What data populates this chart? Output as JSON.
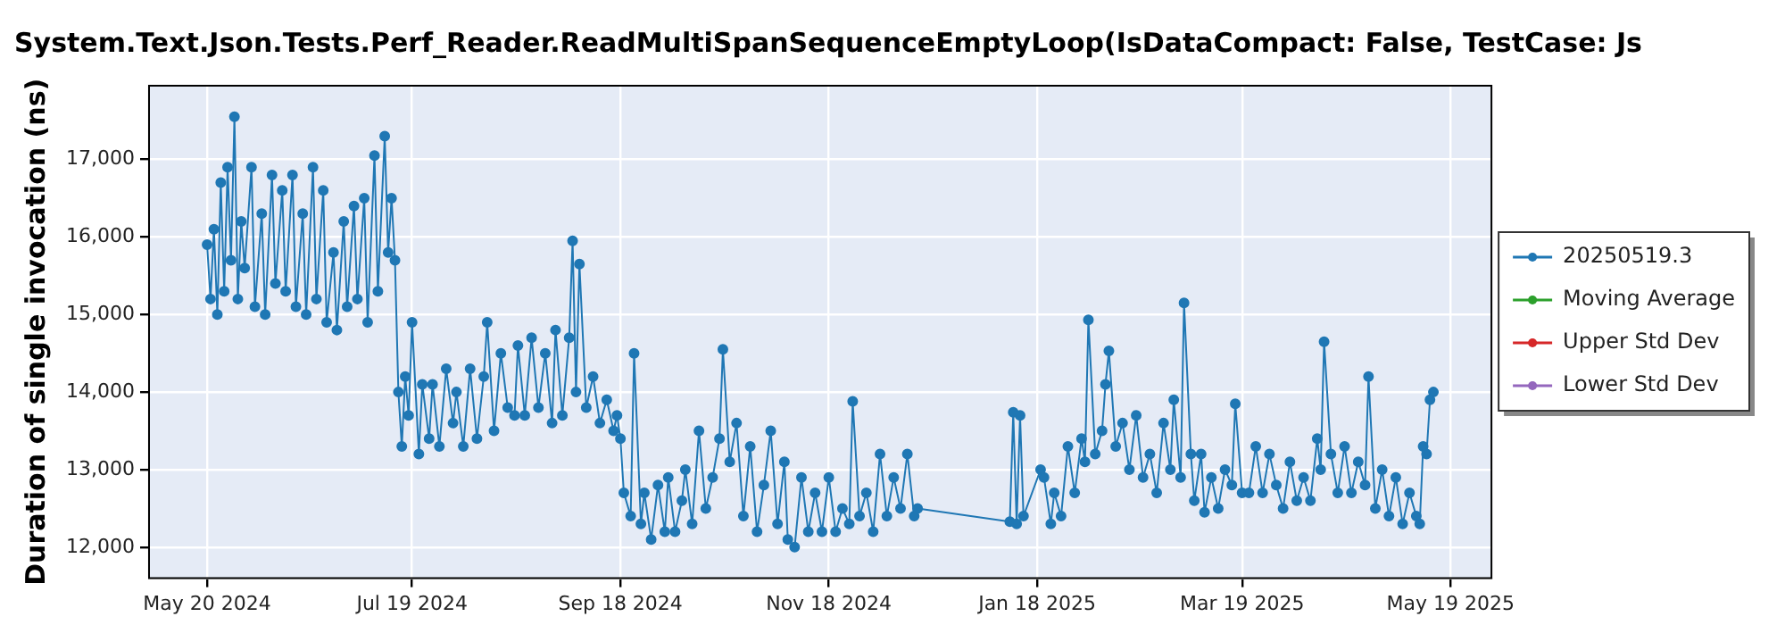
{
  "chart_data": {
    "type": "line",
    "title": "System.Text.Json.Tests.Perf_Reader.ReadMultiSpanSequenceEmptyLoop(IsDataCompact: False, TestCase: Js",
    "ylabel": "Duration of single invocation (ns)",
    "xlim": [
      "2024-05-03",
      "2025-05-31"
    ],
    "xticks": [
      {
        "value": "2024-05-20",
        "label": "May 20 2024"
      },
      {
        "value": "2024-07-19",
        "label": "Jul 19 2024"
      },
      {
        "value": "2024-09-18",
        "label": "Sep 18 2024"
      },
      {
        "value": "2024-11-18",
        "label": "Nov 18 2024"
      },
      {
        "value": "2025-01-18",
        "label": "Jan 18 2025"
      },
      {
        "value": "2025-03-19",
        "label": "Mar 19 2025"
      },
      {
        "value": "2025-05-19",
        "label": "May 19 2025"
      }
    ],
    "ylim": [
      11600,
      17950
    ],
    "yticks": [
      {
        "value": 12000,
        "label": "12,000"
      },
      {
        "value": 13000,
        "label": "13,000"
      },
      {
        "value": 14000,
        "label": "14,000"
      },
      {
        "value": 15000,
        "label": "15,000"
      },
      {
        "value": 16000,
        "label": "16,000"
      },
      {
        "value": 17000,
        "label": "17,000"
      }
    ],
    "grid": true,
    "legend": "right",
    "marker": "circle",
    "series": [
      {
        "name": "20250519.3",
        "color": "#1f77b4",
        "x": [
          "2024-05-20",
          "2024-05-21",
          "2024-05-22",
          "2024-05-23",
          "2024-05-24",
          "2024-05-25",
          "2024-05-26",
          "2024-05-27",
          "2024-05-28",
          "2024-05-29",
          "2024-05-30",
          "2024-05-31",
          "2024-06-02",
          "2024-06-03",
          "2024-06-05",
          "2024-06-06",
          "2024-06-08",
          "2024-06-09",
          "2024-06-11",
          "2024-06-12",
          "2024-06-14",
          "2024-06-15",
          "2024-06-17",
          "2024-06-18",
          "2024-06-20",
          "2024-06-21",
          "2024-06-23",
          "2024-06-24",
          "2024-06-26",
          "2024-06-27",
          "2024-06-29",
          "2024-06-30",
          "2024-07-02",
          "2024-07-03",
          "2024-07-05",
          "2024-07-06",
          "2024-07-08",
          "2024-07-09",
          "2024-07-11",
          "2024-07-12",
          "2024-07-13",
          "2024-07-14",
          "2024-07-15",
          "2024-07-16",
          "2024-07-17",
          "2024-07-18",
          "2024-07-19",
          "2024-07-21",
          "2024-07-22",
          "2024-07-24",
          "2024-07-25",
          "2024-07-27",
          "2024-07-29",
          "2024-07-31",
          "2024-08-01",
          "2024-08-03",
          "2024-08-05",
          "2024-08-07",
          "2024-08-09",
          "2024-08-10",
          "2024-08-12",
          "2024-08-14",
          "2024-08-16",
          "2024-08-18",
          "2024-08-19",
          "2024-08-21",
          "2024-08-23",
          "2024-08-25",
          "2024-08-27",
          "2024-08-29",
          "2024-08-30",
          "2024-09-01",
          "2024-09-03",
          "2024-09-04",
          "2024-09-05",
          "2024-09-06",
          "2024-09-08",
          "2024-09-10",
          "2024-09-12",
          "2024-09-14",
          "2024-09-16",
          "2024-09-17",
          "2024-09-18",
          "2024-09-19",
          "2024-09-21",
          "2024-09-22",
          "2024-09-24",
          "2024-09-25",
          "2024-09-27",
          "2024-09-29",
          "2024-10-01",
          "2024-10-02",
          "2024-10-04",
          "2024-10-06",
          "2024-10-07",
          "2024-10-09",
          "2024-10-11",
          "2024-10-13",
          "2024-10-15",
          "2024-10-17",
          "2024-10-18",
          "2024-10-20",
          "2024-10-22",
          "2024-10-24",
          "2024-10-26",
          "2024-10-28",
          "2024-10-30",
          "2024-11-01",
          "2024-11-03",
          "2024-11-05",
          "2024-11-06",
          "2024-11-08",
          "2024-11-10",
          "2024-11-12",
          "2024-11-14",
          "2024-11-16",
          "2024-11-18",
          "2024-11-20",
          "2024-11-22",
          "2024-11-24",
          "2024-11-25",
          "2024-11-27",
          "2024-11-29",
          "2024-12-01",
          "2024-12-03",
          "2024-12-05",
          "2024-12-07",
          "2024-12-09",
          "2024-12-11",
          "2024-12-13",
          "2024-12-14",
          "2025-01-10",
          "2025-01-11",
          "2025-01-12",
          "2025-01-13",
          "2025-01-14",
          "2025-01-19",
          "2025-01-20",
          "2025-01-22",
          "2025-01-23",
          "2025-01-25",
          "2025-01-27",
          "2025-01-29",
          "2025-01-31",
          "2025-02-01",
          "2025-02-02",
          "2025-02-04",
          "2025-02-06",
          "2025-02-07",
          "2025-02-08",
          "2025-02-10",
          "2025-02-12",
          "2025-02-14",
          "2025-02-16",
          "2025-02-18",
          "2025-02-20",
          "2025-02-22",
          "2025-02-24",
          "2025-02-26",
          "2025-02-27",
          "2025-03-01",
          "2025-03-02",
          "2025-03-04",
          "2025-03-05",
          "2025-03-07",
          "2025-03-08",
          "2025-03-10",
          "2025-03-12",
          "2025-03-14",
          "2025-03-16",
          "2025-03-17",
          "2025-03-19",
          "2025-03-21",
          "2025-03-23",
          "2025-03-25",
          "2025-03-27",
          "2025-03-29",
          "2025-03-31",
          "2025-04-02",
          "2025-04-04",
          "2025-04-06",
          "2025-04-08",
          "2025-04-10",
          "2025-04-11",
          "2025-04-12",
          "2025-04-14",
          "2025-04-16",
          "2025-04-18",
          "2025-04-20",
          "2025-04-22",
          "2025-04-24",
          "2025-04-25",
          "2025-04-27",
          "2025-04-29",
          "2025-05-01",
          "2025-05-03",
          "2025-05-05",
          "2025-05-07",
          "2025-05-09",
          "2025-05-10",
          "2025-05-11",
          "2025-05-12",
          "2025-05-13",
          "2025-05-14"
        ],
        "values": [
          15900,
          15200,
          16100,
          15000,
          16700,
          15300,
          16900,
          15700,
          17550,
          15200,
          16200,
          15600,
          16900,
          15100,
          16300,
          15000,
          16800,
          15400,
          16600,
          15300,
          16800,
          15100,
          16300,
          15000,
          16900,
          15200,
          16600,
          14900,
          15800,
          14800,
          16200,
          15100,
          16400,
          15200,
          16500,
          14900,
          17050,
          15300,
          17300,
          15800,
          16500,
          15700,
          14000,
          13300,
          14200,
          13700,
          14900,
          13200,
          14100,
          13400,
          14100,
          13300,
          14300,
          13600,
          14000,
          13300,
          14300,
          13400,
          14200,
          14900,
          13500,
          14500,
          13800,
          13700,
          14600,
          13700,
          14700,
          13800,
          14500,
          13600,
          14800,
          13700,
          14700,
          15950,
          14000,
          15650,
          13800,
          14200,
          13600,
          13900,
          13500,
          13700,
          13400,
          12700,
          12400,
          14500,
          12300,
          12700,
          12100,
          12800,
          12200,
          12900,
          12200,
          12600,
          13000,
          12300,
          13500,
          12500,
          12900,
          13400,
          14550,
          13100,
          13600,
          12400,
          13300,
          12200,
          12800,
          13500,
          12300,
          13100,
          12100,
          12000,
          12900,
          12200,
          12700,
          12200,
          12900,
          12200,
          12500,
          12300,
          13880,
          12400,
          12700,
          12200,
          13200,
          12400,
          12900,
          12500,
          13200,
          12400,
          12500,
          12330,
          13740,
          12300,
          13700,
          12400,
          13000,
          12900,
          12300,
          12700,
          12400,
          13300,
          12700,
          13400,
          13100,
          14930,
          13200,
          13500,
          14100,
          14530,
          13300,
          13600,
          13000,
          13700,
          12900,
          13200,
          12700,
          13600,
          13000,
          13900,
          12900,
          15150,
          13200,
          12600,
          13200,
          12450,
          12900,
          12500,
          13000,
          12800,
          13850,
          12700,
          12700,
          13300,
          12700,
          13200,
          12800,
          12500,
          13100,
          12600,
          12900,
          12600,
          13400,
          13000,
          14650,
          13200,
          12700,
          13300,
          12700,
          13100,
          12800,
          14200,
          12500,
          13000,
          12400,
          12900,
          12300,
          12700,
          12400,
          12300,
          13300,
          13200,
          13900,
          14000
        ]
      },
      {
        "name": "Moving Average",
        "color": "#2ca02c"
      },
      {
        "name": "Upper Std Dev",
        "color": "#d62728"
      },
      {
        "name": "Lower Std Dev",
        "color": "#9467bd"
      }
    ]
  }
}
